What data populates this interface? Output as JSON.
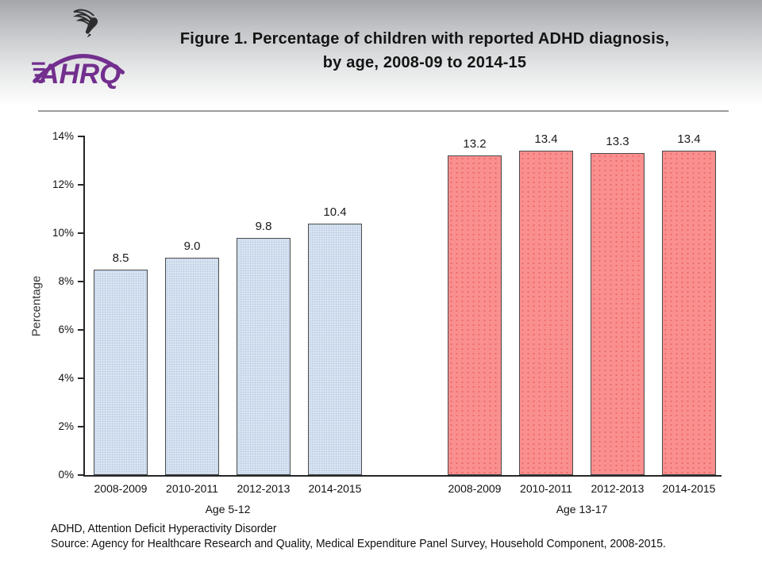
{
  "header": {
    "logo": {
      "org_abbrev": "AHRQ",
      "brand_color": "#722f8e",
      "eagle_icon": "hhs-eagle"
    },
    "title_line1": "Figure 1. Percentage of children with reported ADHD diagnosis,",
    "title_line2": "by age, 2008-09 to 2014-15"
  },
  "chart_data": {
    "type": "bar",
    "title": "Figure 1. Percentage of children with reported ADHD diagnosis, by age, 2008-09 to 2014-15",
    "xlabel": "",
    "ylabel": "Percentage",
    "ylim": [
      0,
      14
    ],
    "ytick_step": 2,
    "yticks": [
      "0%",
      "2%",
      "4%",
      "6%",
      "8%",
      "10%",
      "12%",
      "14%"
    ],
    "grid": false,
    "legend": "none",
    "categories": [
      "2008-2009",
      "2010-2011",
      "2012-2013",
      "2014-2015"
    ],
    "groups": [
      {
        "label": "Age 5-12",
        "values": [
          8.5,
          9.0,
          9.8,
          10.4
        ],
        "value_labels": [
          "8.5",
          "9.0",
          "9.8",
          "10.4"
        ],
        "fill_color": "#dce6f2",
        "dot_color": "#b7cce6",
        "border_color": "#4a4a4a"
      },
      {
        "label": "Age 13-17",
        "values": [
          13.2,
          13.4,
          13.3,
          13.4
        ],
        "value_labels": [
          "13.2",
          "13.4",
          "13.3",
          "13.4"
        ],
        "fill_color": "#fa8f8f",
        "dot_color": "#e0524f",
        "border_color": "#4a4a4a"
      }
    ]
  },
  "footer": {
    "line1": "ADHD, Attention Deficit Hyperactivity Disorder",
    "line2": "Source: Agency for Healthcare Research and Quality, Medical Expenditure Panel Survey, Household Component, 2008-2015."
  }
}
